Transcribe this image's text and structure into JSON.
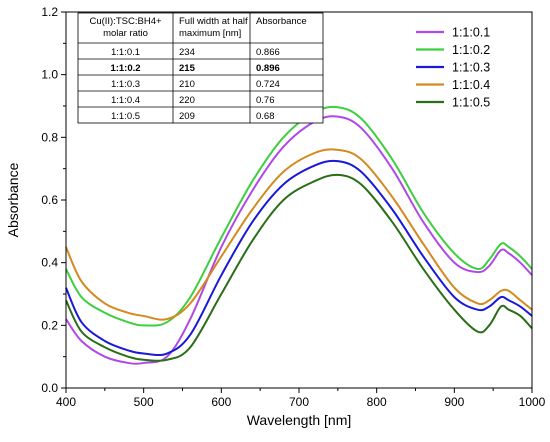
{
  "chart_data": {
    "type": "line",
    "title": "",
    "xlabel": "Wavelength [nm]",
    "ylabel": "Absorbance",
    "xlim": [
      400,
      1000
    ],
    "ylim": [
      0.0,
      1.2
    ],
    "x_ticks": [
      "400",
      "500",
      "600",
      "700",
      "800",
      "900",
      "1000"
    ],
    "y_ticks": [
      "0.0",
      "0.2",
      "0.4",
      "0.6",
      "0.8",
      "1.0",
      "1.2"
    ],
    "legend_position": "top-right",
    "grid": false,
    "x": [
      400,
      420,
      450,
      480,
      500,
      530,
      560,
      600,
      640,
      680,
      720,
      750,
      780,
      820,
      860,
      900,
      930,
      945,
      960,
      970,
      985,
      1000
    ],
    "series": [
      {
        "name": "1:1:0.1",
        "color": "#b048e8",
        "values": [
          0.22,
          0.15,
          0.1,
          0.08,
          0.08,
          0.1,
          0.22,
          0.45,
          0.63,
          0.77,
          0.85,
          0.866,
          0.83,
          0.7,
          0.53,
          0.4,
          0.37,
          0.39,
          0.44,
          0.43,
          0.4,
          0.36
        ]
      },
      {
        "name": "1:1:0.2",
        "color": "#3ecf3e",
        "values": [
          0.38,
          0.29,
          0.24,
          0.21,
          0.2,
          0.21,
          0.29,
          0.48,
          0.66,
          0.8,
          0.88,
          0.896,
          0.86,
          0.73,
          0.56,
          0.43,
          0.38,
          0.41,
          0.46,
          0.45,
          0.42,
          0.38
        ]
      },
      {
        "name": "1:1:0.3",
        "color": "#1a1ad6",
        "values": [
          0.32,
          0.21,
          0.15,
          0.12,
          0.11,
          0.11,
          0.17,
          0.36,
          0.53,
          0.65,
          0.71,
          0.724,
          0.69,
          0.57,
          0.42,
          0.29,
          0.25,
          0.26,
          0.29,
          0.28,
          0.26,
          0.23
        ]
      },
      {
        "name": "1:1:0.4",
        "color": "#d48a1e",
        "values": [
          0.45,
          0.34,
          0.27,
          0.24,
          0.23,
          0.22,
          0.27,
          0.42,
          0.57,
          0.69,
          0.75,
          0.76,
          0.73,
          0.61,
          0.46,
          0.32,
          0.27,
          0.28,
          0.31,
          0.31,
          0.28,
          0.25
        ]
      },
      {
        "name": "1:1:0.5",
        "color": "#2a6e18",
        "values": [
          0.28,
          0.18,
          0.13,
          0.1,
          0.09,
          0.09,
          0.13,
          0.3,
          0.47,
          0.6,
          0.66,
          0.68,
          0.65,
          0.53,
          0.38,
          0.25,
          0.18,
          0.2,
          0.26,
          0.25,
          0.23,
          0.19
        ]
      }
    ],
    "table": {
      "headers": [
        [
          "Cu(II):TSC:BH4+",
          "molar ratio"
        ],
        [
          "Full width at half",
          "maximum [nm]"
        ],
        [
          "Absorbance"
        ]
      ],
      "rows": [
        {
          "ratio": "1:1:0.1",
          "fwhm": "234",
          "absorbance": "0.866",
          "bold": false
        },
        {
          "ratio": "1:1:0.2",
          "fwhm": "215",
          "absorbance": "0.896",
          "bold": true
        },
        {
          "ratio": "1:1:0.3",
          "fwhm": "210",
          "absorbance": "0.724",
          "bold": false
        },
        {
          "ratio": "1:1:0.4",
          "fwhm": "220",
          "absorbance": "0.76",
          "bold": false
        },
        {
          "ratio": "1:1:0.5",
          "fwhm": "209",
          "absorbance": "0.68",
          "bold": false
        }
      ]
    }
  }
}
